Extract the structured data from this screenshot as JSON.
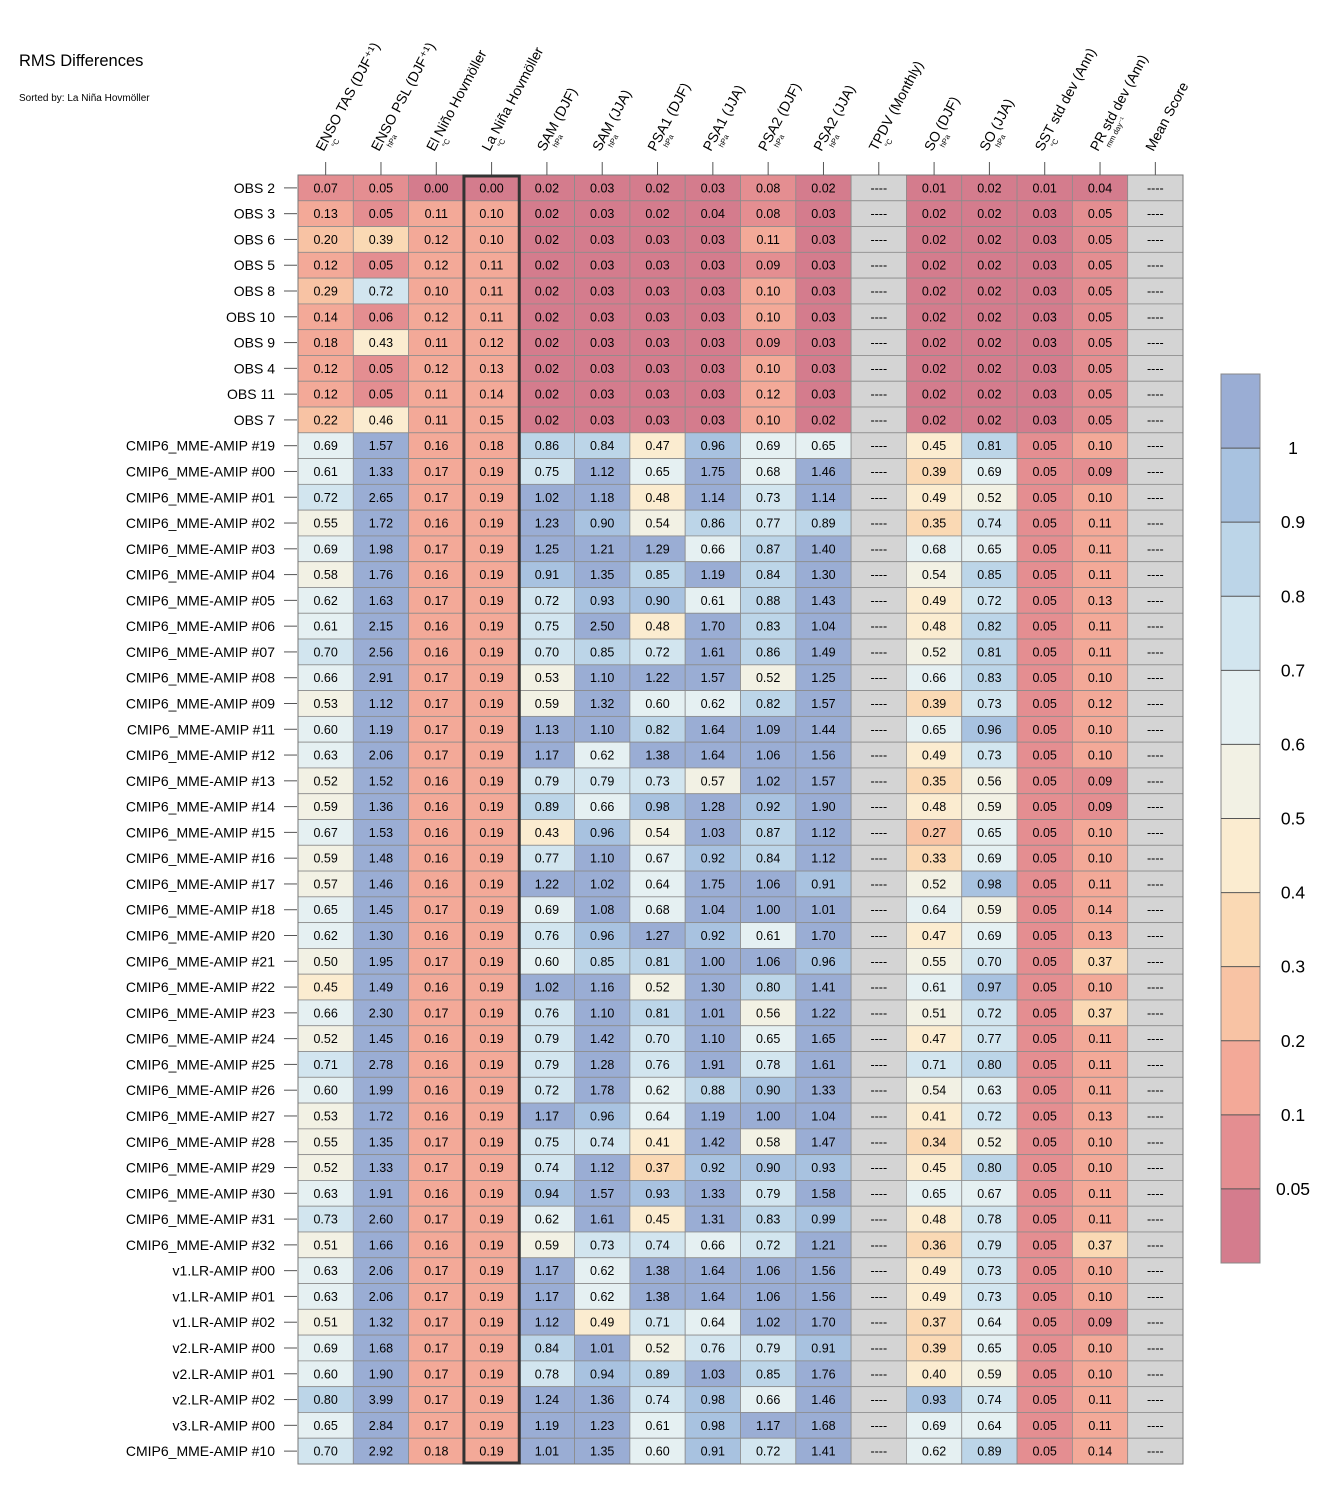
{
  "title": "RMS Differences",
  "subtitle": "Sorted by: La Niña Hovmöller",
  "chart_data": {
    "type": "heatmap",
    "columns": [
      {
        "label": "ENSO TAS (DJF⁺¹)",
        "unit": "°C"
      },
      {
        "label": "ENSO PSL (DJF⁺¹)",
        "unit": "hPa"
      },
      {
        "label": "El Niño Hovmöller",
        "unit": "°C"
      },
      {
        "label": "La Niña Hovmöller",
        "unit": "°C"
      },
      {
        "label": "SAM (DJF)",
        "unit": "hPa"
      },
      {
        "label": "SAM (JJA)",
        "unit": "hPa"
      },
      {
        "label": "PSA1 (DJF)",
        "unit": "hPa"
      },
      {
        "label": "PSA1 (JJA)",
        "unit": "hPa"
      },
      {
        "label": "PSA2 (DJF)",
        "unit": "hPa"
      },
      {
        "label": "PSA2 (JJA)",
        "unit": "hPa"
      },
      {
        "label": "TPDV (Monthly)",
        "unit": "°C"
      },
      {
        "label": "SO (DJF)",
        "unit": "hPa"
      },
      {
        "label": "SO (JJA)",
        "unit": "hPa"
      },
      {
        "label": "SST std dev (Ann)",
        "unit": "°C"
      },
      {
        "label": "PR std dev (Ann)",
        "unit": "mm day⁻¹"
      },
      {
        "label": "Mean Score",
        "unit": ""
      }
    ],
    "highlighted_column": 3,
    "missing_text": "----",
    "colorbar": {
      "labels": [
        "1",
        "0.9",
        "0.8",
        "0.7",
        "0.6",
        "0.5",
        "0.4",
        "0.3",
        "0.2",
        "0.1",
        "0.05"
      ],
      "colors": [
        "#9aadd4",
        "#a8c2e0",
        "#bcd5e8",
        "#d2e5ef",
        "#e5f0f2",
        "#f2f1e4",
        "#fbecd0",
        "#fad9b4",
        "#f8c3a4",
        "#f3a998",
        "#e48e91",
        "#d47c8d"
      ],
      "missing_color": "#d4d4d4"
    },
    "rows": [
      {
        "label": "OBS 2",
        "values": [
          0.07,
          0.05,
          0.0,
          0.0,
          0.02,
          0.03,
          0.02,
          0.03,
          0.08,
          0.02,
          null,
          0.01,
          0.02,
          0.01,
          0.04,
          null
        ]
      },
      {
        "label": "OBS 3",
        "values": [
          0.13,
          0.05,
          0.11,
          0.1,
          0.02,
          0.03,
          0.02,
          0.04,
          0.08,
          0.03,
          null,
          0.02,
          0.02,
          0.03,
          0.05,
          null
        ]
      },
      {
        "label": "OBS 6",
        "values": [
          0.2,
          0.39,
          0.12,
          0.1,
          0.02,
          0.03,
          0.03,
          0.03,
          0.11,
          0.03,
          null,
          0.02,
          0.02,
          0.03,
          0.05,
          null
        ]
      },
      {
        "label": "OBS 5",
        "values": [
          0.12,
          0.05,
          0.12,
          0.11,
          0.02,
          0.03,
          0.03,
          0.03,
          0.09,
          0.03,
          null,
          0.02,
          0.02,
          0.03,
          0.05,
          null
        ]
      },
      {
        "label": "OBS 8",
        "values": [
          0.29,
          0.72,
          0.1,
          0.11,
          0.02,
          0.03,
          0.03,
          0.03,
          0.1,
          0.03,
          null,
          0.02,
          0.02,
          0.03,
          0.05,
          null
        ]
      },
      {
        "label": "OBS 10",
        "values": [
          0.14,
          0.06,
          0.12,
          0.11,
          0.02,
          0.03,
          0.03,
          0.03,
          0.1,
          0.03,
          null,
          0.02,
          0.02,
          0.03,
          0.05,
          null
        ]
      },
      {
        "label": "OBS 9",
        "values": [
          0.18,
          0.43,
          0.11,
          0.12,
          0.02,
          0.03,
          0.03,
          0.03,
          0.09,
          0.03,
          null,
          0.02,
          0.02,
          0.03,
          0.05,
          null
        ]
      },
      {
        "label": "OBS 4",
        "values": [
          0.12,
          0.05,
          0.12,
          0.13,
          0.02,
          0.03,
          0.03,
          0.03,
          0.1,
          0.03,
          null,
          0.02,
          0.02,
          0.03,
          0.05,
          null
        ]
      },
      {
        "label": "OBS 11",
        "values": [
          0.12,
          0.05,
          0.11,
          0.14,
          0.02,
          0.03,
          0.03,
          0.03,
          0.12,
          0.03,
          null,
          0.02,
          0.02,
          0.03,
          0.05,
          null
        ]
      },
      {
        "label": "OBS 7",
        "values": [
          0.22,
          0.46,
          0.11,
          0.15,
          0.02,
          0.03,
          0.03,
          0.03,
          0.1,
          0.02,
          null,
          0.02,
          0.02,
          0.03,
          0.05,
          null
        ]
      },
      {
        "label": "CMIP6_MME-AMIP  #19",
        "values": [
          0.69,
          1.57,
          0.16,
          0.18,
          0.86,
          0.84,
          0.47,
          0.96,
          0.69,
          0.65,
          null,
          0.45,
          0.81,
          0.05,
          0.1,
          null
        ]
      },
      {
        "label": "CMIP6_MME-AMIP  #00",
        "values": [
          0.61,
          1.33,
          0.17,
          0.19,
          0.75,
          1.12,
          0.65,
          1.75,
          0.68,
          1.46,
          null,
          0.39,
          0.69,
          0.05,
          0.09,
          null
        ]
      },
      {
        "label": "CMIP6_MME-AMIP  #01",
        "values": [
          0.72,
          2.65,
          0.17,
          0.19,
          1.02,
          1.18,
          0.48,
          1.14,
          0.73,
          1.14,
          null,
          0.49,
          0.52,
          0.05,
          0.1,
          null
        ]
      },
      {
        "label": "CMIP6_MME-AMIP  #02",
        "values": [
          0.55,
          1.72,
          0.16,
          0.19,
          1.23,
          0.9,
          0.54,
          0.86,
          0.77,
          0.89,
          null,
          0.35,
          0.74,
          0.05,
          0.11,
          null
        ]
      },
      {
        "label": "CMIP6_MME-AMIP  #03",
        "values": [
          0.69,
          1.98,
          0.17,
          0.19,
          1.25,
          1.21,
          1.29,
          0.66,
          0.87,
          1.4,
          null,
          0.68,
          0.65,
          0.05,
          0.11,
          null
        ]
      },
      {
        "label": "CMIP6_MME-AMIP  #04",
        "values": [
          0.58,
          1.76,
          0.16,
          0.19,
          0.91,
          1.35,
          0.85,
          1.19,
          0.84,
          1.3,
          null,
          0.54,
          0.85,
          0.05,
          0.11,
          null
        ]
      },
      {
        "label": "CMIP6_MME-AMIP  #05",
        "values": [
          0.62,
          1.63,
          0.17,
          0.19,
          0.72,
          0.93,
          0.9,
          0.61,
          0.88,
          1.43,
          null,
          0.49,
          0.72,
          0.05,
          0.13,
          null
        ]
      },
      {
        "label": "CMIP6_MME-AMIP  #06",
        "values": [
          0.61,
          2.15,
          0.16,
          0.19,
          0.75,
          2.5,
          0.48,
          1.7,
          0.83,
          1.04,
          null,
          0.48,
          0.82,
          0.05,
          0.11,
          null
        ]
      },
      {
        "label": "CMIP6_MME-AMIP  #07",
        "values": [
          0.7,
          2.56,
          0.16,
          0.19,
          0.7,
          0.85,
          0.72,
          1.61,
          0.86,
          1.49,
          null,
          0.52,
          0.81,
          0.05,
          0.11,
          null
        ]
      },
      {
        "label": "CMIP6_MME-AMIP  #08",
        "values": [
          0.66,
          2.91,
          0.17,
          0.19,
          0.53,
          1.1,
          1.22,
          1.57,
          0.52,
          1.25,
          null,
          0.66,
          0.83,
          0.05,
          0.1,
          null
        ]
      },
      {
        "label": "CMIP6_MME-AMIP  #09",
        "values": [
          0.53,
          1.12,
          0.17,
          0.19,
          0.59,
          1.32,
          0.6,
          0.62,
          0.82,
          1.57,
          null,
          0.39,
          0.73,
          0.05,
          0.12,
          null
        ]
      },
      {
        "label": "CMIP6_MME-AMIP  #11",
        "values": [
          0.6,
          1.19,
          0.17,
          0.19,
          1.13,
          1.1,
          0.82,
          1.64,
          1.09,
          1.44,
          null,
          0.65,
          0.96,
          0.05,
          0.1,
          null
        ]
      },
      {
        "label": "CMIP6_MME-AMIP  #12",
        "values": [
          0.63,
          2.06,
          0.17,
          0.19,
          1.17,
          0.62,
          1.38,
          1.64,
          1.06,
          1.56,
          null,
          0.49,
          0.73,
          0.05,
          0.1,
          null
        ]
      },
      {
        "label": "CMIP6_MME-AMIP  #13",
        "values": [
          0.52,
          1.52,
          0.16,
          0.19,
          0.79,
          0.79,
          0.73,
          0.57,
          1.02,
          1.57,
          null,
          0.35,
          0.56,
          0.05,
          0.09,
          null
        ]
      },
      {
        "label": "CMIP6_MME-AMIP  #14",
        "values": [
          0.59,
          1.36,
          0.16,
          0.19,
          0.89,
          0.66,
          0.98,
          1.28,
          0.92,
          1.9,
          null,
          0.48,
          0.59,
          0.05,
          0.09,
          null
        ]
      },
      {
        "label": "CMIP6_MME-AMIP  #15",
        "values": [
          0.67,
          1.53,
          0.16,
          0.19,
          0.43,
          0.96,
          0.54,
          1.03,
          0.87,
          1.12,
          null,
          0.27,
          0.65,
          0.05,
          0.1,
          null
        ]
      },
      {
        "label": "CMIP6_MME-AMIP  #16",
        "values": [
          0.59,
          1.48,
          0.16,
          0.19,
          0.77,
          1.1,
          0.67,
          0.92,
          0.84,
          1.12,
          null,
          0.33,
          0.69,
          0.05,
          0.1,
          null
        ]
      },
      {
        "label": "CMIP6_MME-AMIP  #17",
        "values": [
          0.57,
          1.46,
          0.16,
          0.19,
          1.22,
          1.02,
          0.64,
          1.75,
          1.06,
          0.91,
          null,
          0.52,
          0.98,
          0.05,
          0.11,
          null
        ]
      },
      {
        "label": "CMIP6_MME-AMIP  #18",
        "values": [
          0.65,
          1.45,
          0.17,
          0.19,
          0.69,
          1.08,
          0.68,
          1.04,
          1.0,
          1.01,
          null,
          0.64,
          0.59,
          0.05,
          0.14,
          null
        ]
      },
      {
        "label": "CMIP6_MME-AMIP  #20",
        "values": [
          0.62,
          1.3,
          0.16,
          0.19,
          0.76,
          0.96,
          1.27,
          0.92,
          0.61,
          1.7,
          null,
          0.47,
          0.69,
          0.05,
          0.13,
          null
        ]
      },
      {
        "label": "CMIP6_MME-AMIP  #21",
        "values": [
          0.5,
          1.95,
          0.17,
          0.19,
          0.6,
          0.85,
          0.81,
          1.0,
          1.06,
          0.96,
          null,
          0.55,
          0.7,
          0.05,
          0.37,
          null
        ]
      },
      {
        "label": "CMIP6_MME-AMIP  #22",
        "values": [
          0.45,
          1.49,
          0.16,
          0.19,
          1.02,
          1.16,
          0.52,
          1.3,
          0.8,
          1.41,
          null,
          0.61,
          0.97,
          0.05,
          0.1,
          null
        ]
      },
      {
        "label": "CMIP6_MME-AMIP  #23",
        "values": [
          0.66,
          2.3,
          0.17,
          0.19,
          0.76,
          1.1,
          0.81,
          1.01,
          0.56,
          1.22,
          null,
          0.51,
          0.72,
          0.05,
          0.37,
          null
        ]
      },
      {
        "label": "CMIP6_MME-AMIP  #24",
        "values": [
          0.52,
          1.45,
          0.16,
          0.19,
          0.79,
          1.42,
          0.7,
          1.1,
          0.65,
          1.65,
          null,
          0.47,
          0.77,
          0.05,
          0.11,
          null
        ]
      },
      {
        "label": "CMIP6_MME-AMIP  #25",
        "values": [
          0.71,
          2.78,
          0.16,
          0.19,
          0.79,
          1.28,
          0.76,
          1.91,
          0.78,
          1.61,
          null,
          0.71,
          0.8,
          0.05,
          0.11,
          null
        ]
      },
      {
        "label": "CMIP6_MME-AMIP  #26",
        "values": [
          0.6,
          1.99,
          0.16,
          0.19,
          0.72,
          1.78,
          0.62,
          0.88,
          0.9,
          1.33,
          null,
          0.54,
          0.63,
          0.05,
          0.11,
          null
        ]
      },
      {
        "label": "CMIP6_MME-AMIP  #27",
        "values": [
          0.53,
          1.72,
          0.16,
          0.19,
          1.17,
          0.96,
          0.64,
          1.19,
          1.0,
          1.04,
          null,
          0.41,
          0.72,
          0.05,
          0.13,
          null
        ]
      },
      {
        "label": "CMIP6_MME-AMIP  #28",
        "values": [
          0.55,
          1.35,
          0.17,
          0.19,
          0.75,
          0.74,
          0.41,
          1.42,
          0.58,
          1.47,
          null,
          0.34,
          0.52,
          0.05,
          0.1,
          null
        ]
      },
      {
        "label": "CMIP6_MME-AMIP  #29",
        "values": [
          0.52,
          1.33,
          0.17,
          0.19,
          0.74,
          1.12,
          0.37,
          0.92,
          0.9,
          0.93,
          null,
          0.45,
          0.8,
          0.05,
          0.1,
          null
        ]
      },
      {
        "label": "CMIP6_MME-AMIP  #30",
        "values": [
          0.63,
          1.91,
          0.16,
          0.19,
          0.94,
          1.57,
          0.93,
          1.33,
          0.79,
          1.58,
          null,
          0.65,
          0.67,
          0.05,
          0.11,
          null
        ]
      },
      {
        "label": "CMIP6_MME-AMIP  #31",
        "values": [
          0.73,
          2.6,
          0.17,
          0.19,
          0.62,
          1.61,
          0.45,
          1.31,
          0.83,
          0.99,
          null,
          0.48,
          0.78,
          0.05,
          0.11,
          null
        ]
      },
      {
        "label": "CMIP6_MME-AMIP  #32",
        "values": [
          0.51,
          1.66,
          0.16,
          0.19,
          0.59,
          0.73,
          0.74,
          0.66,
          0.72,
          1.21,
          null,
          0.36,
          0.79,
          0.05,
          0.37,
          null
        ]
      },
      {
        "label": "v1.LR-AMIP  #00",
        "values": [
          0.63,
          2.06,
          0.17,
          0.19,
          1.17,
          0.62,
          1.38,
          1.64,
          1.06,
          1.56,
          null,
          0.49,
          0.73,
          0.05,
          0.1,
          null
        ]
      },
      {
        "label": "v1.LR-AMIP  #01",
        "values": [
          0.63,
          2.06,
          0.17,
          0.19,
          1.17,
          0.62,
          1.38,
          1.64,
          1.06,
          1.56,
          null,
          0.49,
          0.73,
          0.05,
          0.1,
          null
        ]
      },
      {
        "label": "v1.LR-AMIP  #02",
        "values": [
          0.51,
          1.32,
          0.17,
          0.19,
          1.12,
          0.49,
          0.71,
          0.64,
          1.02,
          1.7,
          null,
          0.37,
          0.64,
          0.05,
          0.09,
          null
        ]
      },
      {
        "label": "v2.LR-AMIP  #00",
        "values": [
          0.69,
          1.68,
          0.17,
          0.19,
          0.84,
          1.01,
          0.52,
          0.76,
          0.79,
          0.91,
          null,
          0.39,
          0.65,
          0.05,
          0.1,
          null
        ]
      },
      {
        "label": "v2.LR-AMIP  #01",
        "values": [
          0.6,
          1.9,
          0.17,
          0.19,
          0.78,
          0.94,
          0.89,
          1.03,
          0.85,
          1.76,
          null,
          0.4,
          0.59,
          0.05,
          0.1,
          null
        ]
      },
      {
        "label": "v2.LR-AMIP  #02",
        "values": [
          0.8,
          3.99,
          0.17,
          0.19,
          1.24,
          1.36,
          0.74,
          0.98,
          0.66,
          1.46,
          null,
          0.93,
          0.74,
          0.05,
          0.11,
          null
        ]
      },
      {
        "label": "v3.LR-AMIP  #00",
        "values": [
          0.65,
          2.84,
          0.17,
          0.19,
          1.19,
          1.23,
          0.61,
          0.98,
          1.17,
          1.68,
          null,
          0.69,
          0.64,
          0.05,
          0.11,
          null
        ]
      },
      {
        "label": "CMIP6_MME-AMIP  #10",
        "values": [
          0.7,
          2.92,
          0.18,
          0.19,
          1.01,
          1.35,
          0.6,
          0.91,
          0.72,
          1.41,
          null,
          0.62,
          0.89,
          0.05,
          0.14,
          null
        ]
      }
    ]
  }
}
